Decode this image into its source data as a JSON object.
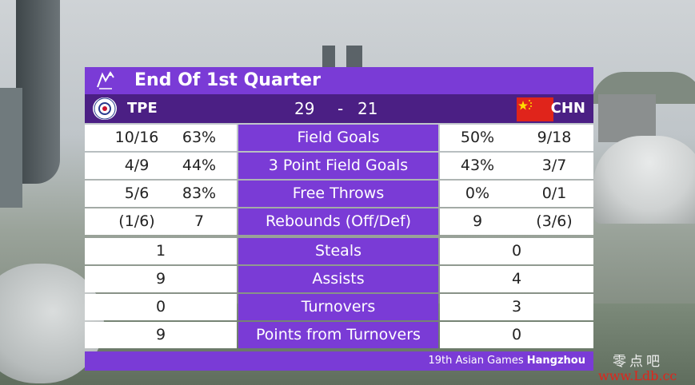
{
  "title": "End Of 1st Quarter",
  "score_bar": {
    "home_team": "TPE",
    "away_team": "CHN",
    "home_score": "29",
    "separator": "-",
    "away_score": "21"
  },
  "stats": [
    {
      "label": "Field Goals",
      "home": [
        "10/16",
        "63%"
      ],
      "away": [
        "50%",
        "9/18"
      ]
    },
    {
      "label": "3 Point Field Goals",
      "home": [
        "4/9",
        "44%"
      ],
      "away": [
        "43%",
        "3/7"
      ]
    },
    {
      "label": "Free Throws",
      "home": [
        "5/6",
        "83%"
      ],
      "away": [
        "0%",
        "0/1"
      ]
    },
    {
      "label": "Rebounds (Off/Def)",
      "home": [
        "(1/6)",
        "7"
      ],
      "away": [
        "9",
        "(3/6)"
      ]
    },
    {
      "label": "Steals",
      "home": [
        "1"
      ],
      "away": [
        "0"
      ]
    },
    {
      "label": "Assists",
      "home": [
        "9"
      ],
      "away": [
        "4"
      ]
    },
    {
      "label": "Turnovers",
      "home": [
        "0"
      ],
      "away": [
        "3"
      ]
    },
    {
      "label": "Points from Turnovers",
      "home": [
        "9"
      ],
      "away": [
        "0"
      ]
    }
  ],
  "footer": {
    "event": "19th Asian Games",
    "city": "Hangzhou"
  },
  "watermark": {
    "chinese": "零点吧",
    "url": "www.Ldb.cc"
  },
  "colors": {
    "accent": "#7a3bd6",
    "dark_accent": "#4b1f84",
    "watermark_red": "#e1251b"
  },
  "icons": {
    "title_logo": "asian-games-logo-icon",
    "home_flag": "tpe-flag-icon",
    "away_flag": "chn-flag-icon"
  }
}
